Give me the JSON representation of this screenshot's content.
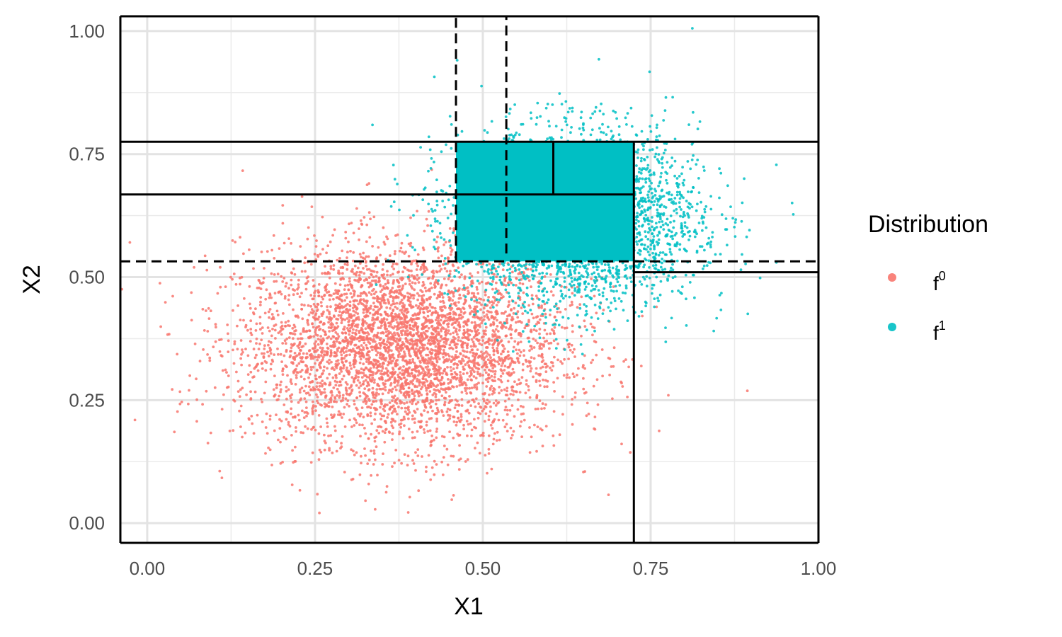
{
  "chart_data": {
    "type": "scatter",
    "xlabel": "X1",
    "ylabel": "X2",
    "xlim": [
      -0.04,
      1.0
    ],
    "ylim": [
      -0.04,
      1.03
    ],
    "x_ticks": [
      0.0,
      0.25,
      0.5,
      0.75,
      1.0
    ],
    "y_ticks": [
      0.0,
      0.25,
      0.5,
      0.75,
      1.0
    ],
    "x_tick_labels": [
      "0.00",
      "0.25",
      "0.50",
      "0.75",
      "1.00"
    ],
    "y_tick_labels": [
      "0.00",
      "0.25",
      "0.50",
      "0.75",
      "1.00"
    ],
    "grid": true,
    "legend": {
      "title": "Distribution",
      "position": "right",
      "entries": [
        {
          "base": "f",
          "sup": "0"
        },
        {
          "base": "f",
          "sup": "1"
        }
      ]
    },
    "series": [
      {
        "color": "#F8766D",
        "center": [
          0.38,
          0.36
        ],
        "sd": [
          0.12,
          0.1
        ],
        "n": 4500
      },
      {
        "color": "#00BFC4",
        "center": [
          0.64,
          0.62
        ],
        "sd": [
          0.09,
          0.09
        ],
        "n": 3200
      }
    ],
    "solid_segments": [
      {
        "x1": -0.04,
        "y1": 0.775,
        "x2": 1.0,
        "y2": 0.775
      },
      {
        "x1": -0.04,
        "y1": 0.668,
        "x2": 0.725,
        "y2": 0.668
      },
      {
        "x1": 0.725,
        "y1": -0.04,
        "x2": 0.725,
        "y2": 0.775
      },
      {
        "x1": 0.605,
        "y1": 0.668,
        "x2": 0.605,
        "y2": 0.775
      },
      {
        "x1": 0.725,
        "y1": 0.51,
        "x2": 1.0,
        "y2": 0.51
      },
      {
        "x1": 1.0,
        "y1": -0.04,
        "x2": 1.0,
        "y2": 1.03
      },
      {
        "x1": -0.04,
        "y1": -0.04,
        "x2": -0.04,
        "y2": 1.03
      },
      {
        "x1": -0.04,
        "y1": 1.03,
        "x2": 1.0,
        "y2": 1.03
      },
      {
        "x1": -0.04,
        "y1": -0.04,
        "x2": 1.0,
        "y2": -0.04
      }
    ],
    "dashed_segments": [
      {
        "x1": -0.04,
        "y1": 0.532,
        "x2": 1.0,
        "y2": 0.532
      },
      {
        "x1": 0.46,
        "y1": 0.532,
        "x2": 0.46,
        "y2": 1.03
      },
      {
        "x1": 0.535,
        "y1": 0.548,
        "x2": 0.535,
        "y2": 1.03
      }
    ],
    "filled_regions": [
      {
        "x1": 0.46,
        "y1": 0.532,
        "x2": 0.725,
        "y2": 0.775,
        "color": "#00BFC4"
      }
    ]
  }
}
